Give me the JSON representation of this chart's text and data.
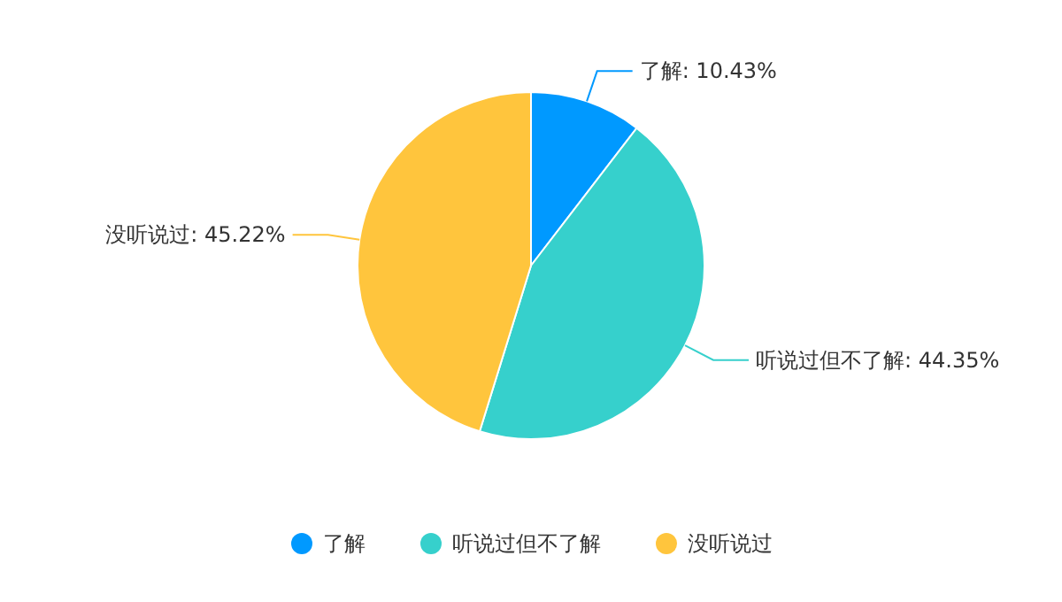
{
  "chart_data": {
    "type": "pie",
    "categories": [
      "了解",
      "听说过但不了解",
      "没听说过"
    ],
    "values": [
      10.43,
      44.35,
      45.22
    ],
    "value_labels": [
      ": 10.43%",
      ": 44.35%",
      ": 45.22%"
    ],
    "colors": [
      "#0099ff",
      "#36d0cc",
      "#ffc53d"
    ],
    "legend": "bottom"
  }
}
